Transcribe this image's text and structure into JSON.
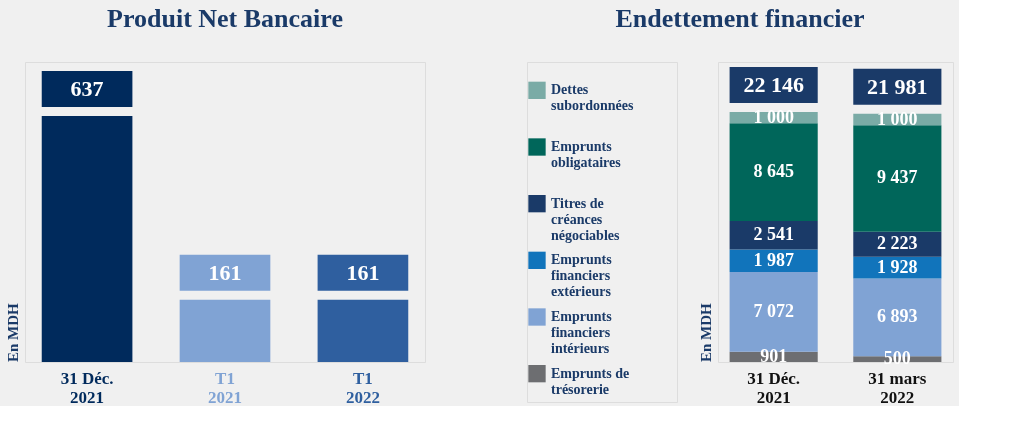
{
  "chart_data": [
    {
      "type": "bar",
      "title": "Produit Net Bancaire",
      "ylabel": "En MDH",
      "categories": [
        "31 Déc. 2021",
        "T1 2021",
        "T1 2022"
      ],
      "values": [
        637,
        161,
        161
      ],
      "colors": [
        "#002a5c",
        "#80a3d4",
        "#2f5f9f"
      ],
      "data_labels": true
    },
    {
      "type": "bar",
      "title": "Endettement financier",
      "ylabel": "En MDH",
      "categories": [
        "31 Déc. 2021",
        "31 mars 2022"
      ],
      "stacked": true,
      "legend": "left",
      "totals": [
        "22 146",
        "21 981"
      ],
      "series": [
        {
          "name": "Emprunts de trésorerie",
          "color": "#6d6e71",
          "values": [
            901,
            500
          ],
          "value_labels": [
            "901",
            "500"
          ]
        },
        {
          "name": "Emprunts financiers intérieurs",
          "color": "#80a3d4",
          "values": [
            7072,
            6893
          ],
          "value_labels": [
            "7 072",
            "6 893"
          ]
        },
        {
          "name": "Emprunts financiers extérieurs",
          "color": "#1174bb",
          "values": [
            1987,
            1928
          ],
          "value_labels": [
            "1 987",
            "1 928"
          ]
        },
        {
          "name": "Titres de créances négociables",
          "color": "#1a3a68",
          "values": [
            2541,
            2223
          ],
          "value_labels": [
            "2 541",
            "2 223"
          ]
        },
        {
          "name": "Emprunts obligataires",
          "color": "#00665a",
          "values": [
            8645,
            9437
          ],
          "value_labels": [
            "8 645",
            "9 437"
          ]
        },
        {
          "name": "Dettes subordonnées",
          "color": "#7aaba6",
          "values": [
            1000,
            1000
          ],
          "value_labels": [
            "1 000",
            "1 000"
          ]
        }
      ]
    }
  ]
}
